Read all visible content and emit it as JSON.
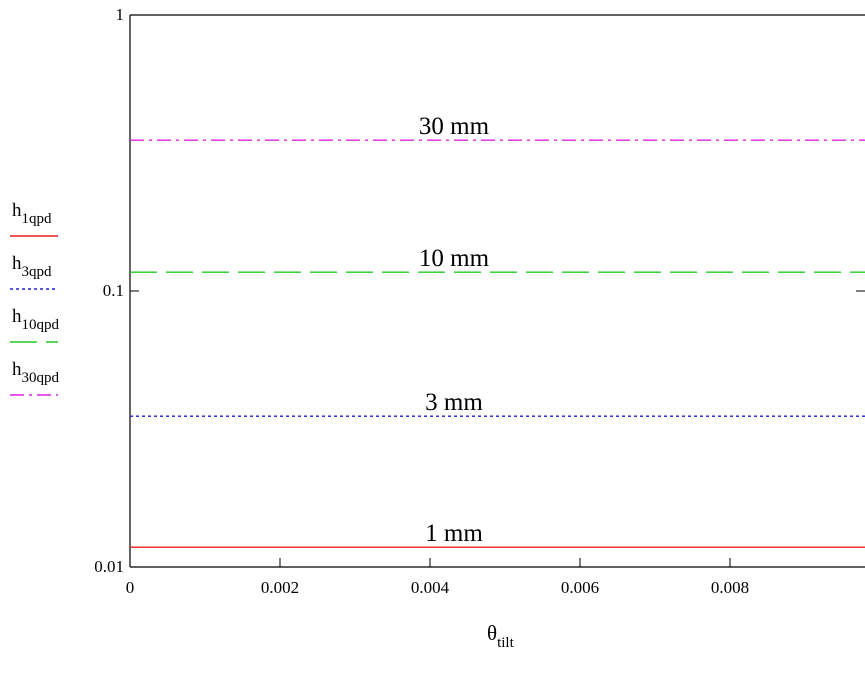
{
  "chart_data": {
    "type": "line",
    "title": "",
    "x_axis": {
      "label_main": "θ",
      "label_sub": "tilt",
      "range": [
        0,
        0.0098
      ],
      "ticks": [
        0,
        0.002,
        0.004,
        0.006,
        0.008
      ],
      "tick_labels": [
        "0",
        "0.002",
        "0.004",
        "0.006",
        "0.008"
      ]
    },
    "y_axis": {
      "scale": "log",
      "range": [
        0.01,
        1
      ],
      "ticks": [
        0.01,
        0.1,
        1
      ],
      "tick_labels": [
        "0.01",
        "0.1",
        "1"
      ]
    },
    "grid": false,
    "legend_position": "left",
    "series": [
      {
        "name": "h1qpd",
        "legend_main": "h",
        "legend_sub": "1qpd",
        "color": "#e8211b",
        "dash": "solid",
        "label": "1 mm",
        "x": [
          0,
          0.0098
        ],
        "y": [
          0.0118,
          0.0118
        ]
      },
      {
        "name": "h3qpd",
        "legend_main": "h",
        "legend_sub": "3qpd",
        "color": "#1f1fd6",
        "dash": "dotted",
        "label": "3 mm",
        "x": [
          0,
          0.0098
        ],
        "y": [
          0.0352,
          0.0352
        ]
      },
      {
        "name": "h10qpd",
        "legend_main": "h",
        "legend_sub": "10qpd",
        "color": "#22cc22",
        "dash": "dashed",
        "label": "10 mm",
        "x": [
          0,
          0.0098
        ],
        "y": [
          0.117,
          0.117
        ]
      },
      {
        "name": "h30qpd",
        "legend_main": "h",
        "legend_sub": "30qpd",
        "color": "#e020e0",
        "dash": "dashdot",
        "label": "30 mm",
        "x": [
          0,
          0.0098
        ],
        "y": [
          0.352,
          0.352
        ]
      }
    ]
  }
}
